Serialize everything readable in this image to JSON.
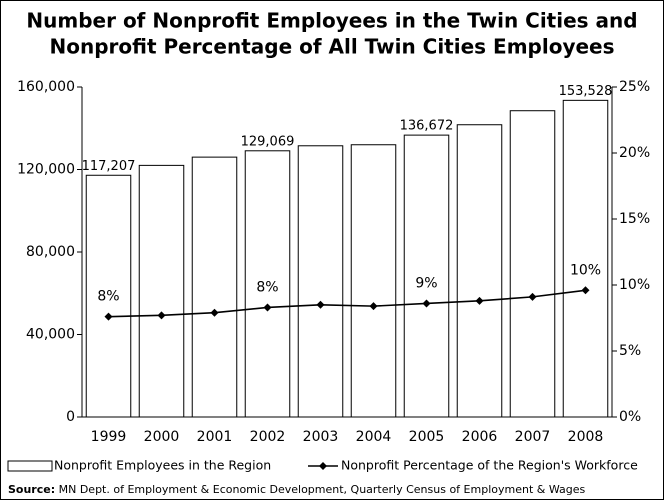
{
  "chart_data": {
    "type": "bar",
    "title": [
      "Number of Nonprofit Employees in the Twin Cities and",
      "Nonprofit Percentage of All Twin Cities Employees"
    ],
    "categories": [
      "1999",
      "2000",
      "2001",
      "2002",
      "2003",
      "2004",
      "2005",
      "2006",
      "2007",
      "2008"
    ],
    "series": [
      {
        "name": "Nonprofit Employees in the Region",
        "type": "bar",
        "color": "#ffffff",
        "values": [
          117207,
          122000,
          126000,
          129069,
          131500,
          132000,
          136672,
          141700,
          148500,
          153528
        ],
        "value_labels": [
          "117,207",
          null,
          null,
          "129,069",
          null,
          null,
          "136,672",
          null,
          null,
          "153,528"
        ]
      },
      {
        "name": "Nonprofit Percentage of the Region's Workforce",
        "type": "line",
        "axis": "y2",
        "color": "#000000",
        "values": [
          7.6,
          7.7,
          7.9,
          8.3,
          8.5,
          8.4,
          8.6,
          8.8,
          9.1,
          9.6
        ],
        "value_labels": [
          "8%",
          null,
          null,
          "8%",
          null,
          null,
          "9%",
          null,
          null,
          "10%"
        ]
      }
    ],
    "ylim": [
      0,
      160000
    ],
    "yticks": [
      0,
      {
        "value": 40000,
        "label": "40,000"
      },
      {
        "value": 80000,
        "label": "80,000"
      },
      {
        "value": 120000,
        "label": "120,000"
      },
      {
        "value": 160000,
        "label": "160,000"
      }
    ],
    "y2lim": [
      0,
      25
    ],
    "y2ticks": [
      {
        "value": 0,
        "label": "0%"
      },
      {
        "value": 5,
        "label": "5%"
      },
      {
        "value": 10,
        "label": "10%"
      },
      {
        "value": 15,
        "label": "15%"
      },
      {
        "value": 20,
        "label": "20%"
      },
      {
        "value": 25,
        "label": "25%"
      }
    ],
    "source_label": "Source:",
    "source": "MN Dept. of Employment & Economic Development, Quarterly Census of Employment & Wages"
  }
}
